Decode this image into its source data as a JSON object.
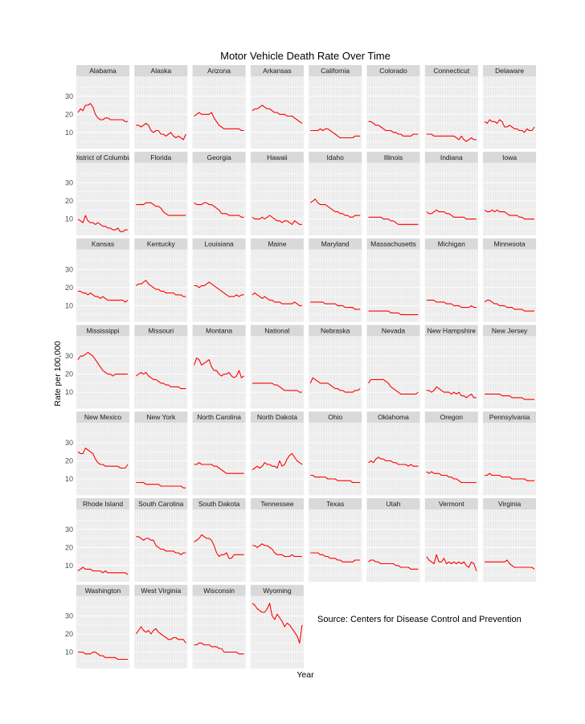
{
  "chart_data": {
    "type": "line",
    "title": "Motor Vehicle Death Rate Over Time",
    "xlabel": "Year",
    "ylabel": "Rate per 100,000",
    "source": "Source:  Centers for Disease Control and Prevention",
    "yticks": [
      10,
      20,
      30
    ],
    "ylim": [
      1,
      41
    ],
    "series_color": "#ff0000",
    "grid": true,
    "points_per_series": 21,
    "panels": [
      {
        "name": "Alabama",
        "values": [
          21,
          23,
          22,
          25,
          25,
          26,
          24,
          20,
          18,
          17,
          17,
          18,
          18,
          17,
          17,
          17,
          17,
          17,
          17,
          16,
          16
        ]
      },
      {
        "name": "Alaska",
        "values": [
          14,
          14,
          13,
          14,
          15,
          14,
          11,
          10,
          11,
          11,
          9,
          9,
          8,
          9,
          10,
          8,
          7,
          8,
          7,
          6,
          9
        ]
      },
      {
        "name": "Arizona",
        "values": [
          19,
          20,
          21,
          20,
          20,
          20,
          20,
          21,
          18,
          16,
          14,
          13,
          12,
          12,
          12,
          12,
          12,
          12,
          12,
          11,
          11
        ]
      },
      {
        "name": "Arkansas",
        "values": [
          22,
          23,
          23,
          24,
          25,
          24,
          23,
          23,
          22,
          21,
          21,
          20,
          20,
          20,
          19,
          19,
          19,
          18,
          17,
          16,
          15
        ]
      },
      {
        "name": "California",
        "values": [
          11,
          11,
          11,
          11,
          12,
          11,
          12,
          12,
          11,
          10,
          9,
          8,
          7,
          7,
          7,
          7,
          7,
          7,
          8,
          8,
          8
        ]
      },
      {
        "name": "Colorado",
        "values": [
          16,
          16,
          15,
          14,
          14,
          13,
          12,
          11,
          11,
          11,
          10,
          10,
          9,
          9,
          8,
          8,
          8,
          8,
          9,
          9,
          9
        ]
      },
      {
        "name": "Connecticut",
        "values": [
          9,
          9,
          9,
          8,
          8,
          8,
          8,
          8,
          8,
          8,
          8,
          8,
          7,
          6,
          8,
          6,
          5,
          6,
          7,
          6,
          6
        ]
      },
      {
        "name": "Delaware",
        "values": [
          16,
          15,
          17,
          16,
          16,
          15,
          17,
          16,
          13,
          13,
          14,
          13,
          12,
          12,
          11,
          11,
          10,
          12,
          11,
          11,
          13
        ]
      },
      {
        "name": "District of Columbia",
        "values": [
          10,
          9,
          8,
          12,
          9,
          8,
          8,
          7,
          8,
          7,
          6,
          6,
          5,
          5,
          4,
          4,
          5,
          3,
          3,
          4,
          4
        ]
      },
      {
        "name": "Florida",
        "values": [
          18,
          18,
          18,
          18,
          19,
          19,
          19,
          18,
          17,
          17,
          16,
          14,
          13,
          12,
          12,
          12,
          12,
          12,
          12,
          12,
          12
        ]
      },
      {
        "name": "Georgia",
        "values": [
          19,
          18,
          18,
          18,
          19,
          19,
          18,
          18,
          17,
          16,
          15,
          13,
          13,
          13,
          12,
          12,
          12,
          12,
          12,
          11,
          11
        ]
      },
      {
        "name": "Hawaii",
        "values": [
          11,
          10,
          10,
          10,
          11,
          10,
          11,
          12,
          11,
          10,
          9,
          9,
          8,
          9,
          9,
          8,
          7,
          9,
          8,
          7,
          7
        ]
      },
      {
        "name": "Idaho",
        "values": [
          19,
          20,
          21,
          19,
          18,
          18,
          18,
          17,
          16,
          15,
          14,
          14,
          13,
          13,
          12,
          12,
          11,
          11,
          12,
          12,
          12
        ]
      },
      {
        "name": "Illinois",
        "values": [
          11,
          11,
          11,
          11,
          11,
          11,
          10,
          10,
          10,
          9,
          9,
          8,
          7,
          7,
          7,
          7,
          7,
          7,
          7,
          7,
          7
        ]
      },
      {
        "name": "Indiana",
        "values": [
          14,
          13,
          13,
          14,
          15,
          14,
          14,
          14,
          13,
          13,
          12,
          11,
          11,
          11,
          11,
          11,
          10,
          10,
          10,
          10,
          10
        ]
      },
      {
        "name": "Iowa",
        "values": [
          15,
          14,
          14,
          15,
          14,
          15,
          14,
          14,
          14,
          13,
          12,
          12,
          12,
          12,
          11,
          11,
          10,
          10,
          10,
          10,
          10
        ]
      },
      {
        "name": "Kansas",
        "values": [
          18,
          18,
          17,
          17,
          16,
          17,
          16,
          15,
          15,
          14,
          15,
          14,
          13,
          13,
          13,
          13,
          13,
          13,
          13,
          12,
          13
        ]
      },
      {
        "name": "Kentucky",
        "values": [
          21,
          22,
          22,
          23,
          24,
          22,
          21,
          20,
          19,
          19,
          18,
          18,
          17,
          17,
          17,
          17,
          16,
          16,
          16,
          15,
          15
        ]
      },
      {
        "name": "Louisiana",
        "values": [
          21,
          21,
          20,
          21,
          21,
          22,
          23,
          22,
          21,
          20,
          19,
          18,
          17,
          16,
          15,
          15,
          15,
          16,
          15,
          16,
          16
        ]
      },
      {
        "name": "Maine",
        "values": [
          16,
          17,
          16,
          15,
          14,
          15,
          14,
          13,
          13,
          12,
          12,
          12,
          11,
          11,
          11,
          11,
          11,
          12,
          11,
          10,
          10
        ]
      },
      {
        "name": "Maryland",
        "values": [
          12,
          12,
          12,
          12,
          12,
          12,
          11,
          11,
          11,
          11,
          11,
          10,
          10,
          10,
          9,
          9,
          9,
          9,
          8,
          8,
          8
        ]
      },
      {
        "name": "Massachusetts",
        "values": [
          7,
          7,
          7,
          7,
          7,
          7,
          7,
          7,
          7,
          6,
          6,
          6,
          6,
          5,
          5,
          5,
          5,
          5,
          5,
          5,
          5
        ]
      },
      {
        "name": "Michigan",
        "values": [
          13,
          13,
          13,
          13,
          12,
          12,
          12,
          12,
          11,
          11,
          11,
          10,
          10,
          10,
          9,
          9,
          9,
          9,
          10,
          9,
          9
        ]
      },
      {
        "name": "Minnesota",
        "values": [
          12,
          13,
          13,
          12,
          11,
          11,
          10,
          10,
          10,
          9,
          9,
          9,
          8,
          8,
          8,
          8,
          7,
          7,
          7,
          7,
          7
        ]
      },
      {
        "name": "Mississippi",
        "values": [
          28,
          30,
          30,
          31,
          32,
          31,
          30,
          28,
          26,
          24,
          22,
          21,
          20,
          20,
          19,
          20,
          20,
          20,
          20,
          20,
          20
        ]
      },
      {
        "name": "Missouri",
        "values": [
          19,
          20,
          21,
          20,
          21,
          19,
          18,
          17,
          17,
          16,
          15,
          15,
          14,
          14,
          13,
          13,
          13,
          13,
          12,
          12,
          12
        ]
      },
      {
        "name": "Montana",
        "values": [
          25,
          29,
          28,
          25,
          26,
          27,
          28,
          24,
          22,
          22,
          20,
          19,
          20,
          20,
          21,
          19,
          18,
          19,
          22,
          18,
          19
        ]
      },
      {
        "name": "National",
        "values": [
          15,
          15,
          15,
          15,
          15,
          15,
          15,
          15,
          15,
          14,
          14,
          13,
          12,
          11,
          11,
          11,
          11,
          11,
          11,
          10,
          10
        ]
      },
      {
        "name": "Nebraska",
        "values": [
          15,
          18,
          17,
          16,
          15,
          15,
          15,
          15,
          14,
          13,
          12,
          12,
          11,
          11,
          10,
          10,
          10,
          10,
          11,
          11,
          12
        ]
      },
      {
        "name": "Nevada",
        "values": [
          15,
          17,
          17,
          17,
          17,
          17,
          17,
          16,
          15,
          13,
          12,
          11,
          10,
          9,
          9,
          9,
          9,
          9,
          9,
          9,
          10
        ]
      },
      {
        "name": "New Hampshire",
        "values": [
          11,
          11,
          10,
          11,
          13,
          12,
          11,
          10,
          10,
          10,
          9,
          10,
          9,
          10,
          8,
          8,
          7,
          8,
          9,
          7,
          7
        ]
      },
      {
        "name": "New Jersey",
        "values": [
          9,
          9,
          9,
          9,
          9,
          9,
          9,
          8,
          8,
          8,
          8,
          7,
          7,
          7,
          7,
          7,
          6,
          6,
          6,
          6,
          6
        ]
      },
      {
        "name": "New Mexico",
        "values": [
          25,
          24,
          24,
          27,
          26,
          25,
          24,
          21,
          19,
          18,
          18,
          17,
          17,
          17,
          17,
          17,
          17,
          16,
          16,
          16,
          18
        ]
      },
      {
        "name": "New York",
        "values": [
          8,
          8,
          8,
          8,
          7,
          7,
          7,
          7,
          7,
          7,
          6,
          6,
          6,
          6,
          6,
          6,
          6,
          6,
          6,
          5,
          5
        ]
      },
      {
        "name": "North Carolina",
        "values": [
          18,
          18,
          19,
          18,
          18,
          18,
          18,
          18,
          17,
          17,
          16,
          15,
          14,
          13,
          13,
          13,
          13,
          13,
          13,
          13,
          13
        ]
      },
      {
        "name": "North Dakota",
        "values": [
          15,
          16,
          17,
          16,
          17,
          19,
          18,
          18,
          17,
          17,
          16,
          20,
          17,
          18,
          21,
          23,
          24,
          22,
          20,
          19,
          18
        ]
      },
      {
        "name": "Ohio",
        "values": [
          12,
          12,
          11,
          11,
          11,
          11,
          11,
          10,
          10,
          10,
          10,
          9,
          9,
          9,
          9,
          9,
          9,
          8,
          8,
          8,
          8
        ]
      },
      {
        "name": "Oklahoma",
        "values": [
          19,
          20,
          19,
          21,
          22,
          21,
          21,
          20,
          20,
          20,
          19,
          19,
          18,
          18,
          18,
          18,
          17,
          18,
          17,
          17,
          17
        ]
      },
      {
        "name": "Oregon",
        "values": [
          14,
          13,
          14,
          13,
          13,
          13,
          12,
          12,
          12,
          11,
          11,
          10,
          10,
          9,
          8,
          8,
          8,
          8,
          8,
          8,
          8
        ]
      },
      {
        "name": "Pennsylvania",
        "values": [
          12,
          12,
          13,
          12,
          12,
          12,
          12,
          11,
          11,
          11,
          11,
          10,
          10,
          10,
          10,
          10,
          10,
          9,
          9,
          9,
          9
        ]
      },
      {
        "name": "Rhode Island",
        "values": [
          7,
          8,
          9,
          8,
          8,
          8,
          7,
          7,
          7,
          7,
          6,
          7,
          6,
          6,
          6,
          6,
          6,
          6,
          6,
          6,
          5
        ]
      },
      {
        "name": "South Carolina",
        "values": [
          26,
          26,
          25,
          24,
          25,
          25,
          24,
          24,
          21,
          20,
          19,
          19,
          18,
          18,
          18,
          18,
          17,
          17,
          16,
          17,
          17
        ]
      },
      {
        "name": "South Dakota",
        "values": [
          23,
          24,
          25,
          27,
          26,
          25,
          25,
          24,
          21,
          17,
          15,
          16,
          16,
          17,
          14,
          14,
          16,
          16,
          16,
          16,
          16
        ]
      },
      {
        "name": "Tennessee",
        "values": [
          21,
          21,
          20,
          21,
          22,
          21,
          21,
          20,
          19,
          17,
          16,
          16,
          16,
          15,
          15,
          15,
          16,
          15,
          15,
          15,
          15
        ]
      },
      {
        "name": "Texas",
        "values": [
          17,
          17,
          17,
          17,
          16,
          16,
          15,
          15,
          14,
          14,
          14,
          13,
          13,
          12,
          12,
          12,
          12,
          12,
          13,
          13,
          13
        ]
      },
      {
        "name": "Utah",
        "values": [
          12,
          13,
          13,
          12,
          12,
          11,
          11,
          11,
          11,
          11,
          11,
          10,
          10,
          9,
          9,
          9,
          9,
          8,
          8,
          8,
          8
        ]
      },
      {
        "name": "Vermont",
        "values": [
          15,
          13,
          12,
          11,
          16,
          12,
          12,
          14,
          11,
          12,
          11,
          12,
          11,
          12,
          11,
          12,
          10,
          9,
          12,
          11,
          7
        ]
      },
      {
        "name": "Virginia",
        "values": [
          12,
          12,
          12,
          12,
          12,
          12,
          12,
          12,
          12,
          13,
          11,
          10,
          9,
          9,
          9,
          9,
          9,
          9,
          9,
          9,
          8
        ]
      },
      {
        "name": "Washington",
        "values": [
          10,
          10,
          10,
          9,
          9,
          9,
          10,
          10,
          9,
          8,
          8,
          7,
          7,
          7,
          7,
          7,
          6,
          6,
          6,
          6,
          6
        ]
      },
      {
        "name": "West Virginia",
        "values": [
          20,
          22,
          24,
          22,
          21,
          22,
          20,
          22,
          23,
          21,
          20,
          19,
          18,
          17,
          17,
          18,
          18,
          17,
          17,
          17,
          15
        ]
      },
      {
        "name": "Wisconsin",
        "values": [
          14,
          14,
          15,
          15,
          14,
          14,
          14,
          13,
          13,
          13,
          12,
          12,
          10,
          10,
          10,
          10,
          10,
          10,
          9,
          9,
          9
        ]
      },
      {
        "name": "Wyoming",
        "values": [
          37,
          36,
          34,
          33,
          32,
          32,
          34,
          37,
          30,
          28,
          31,
          29,
          27,
          24,
          26,
          25,
          23,
          21,
          19,
          15,
          25
        ]
      }
    ]
  }
}
